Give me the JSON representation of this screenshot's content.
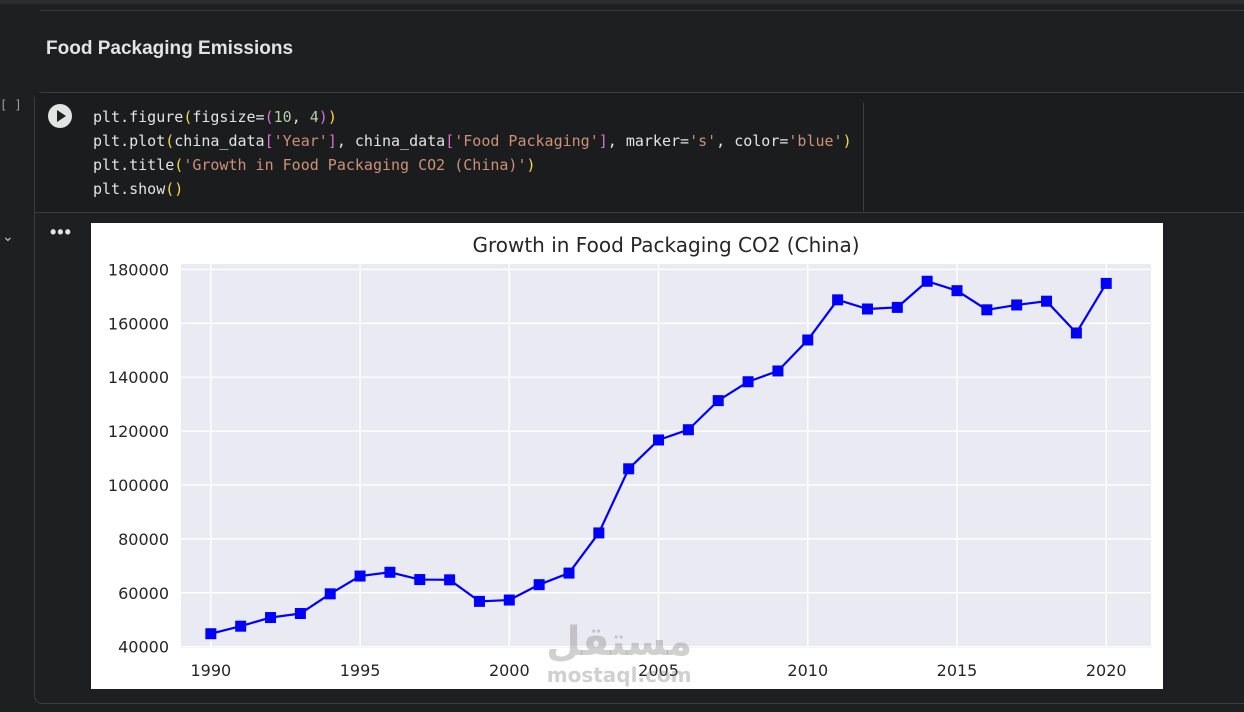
{
  "section": {
    "title": "Food Packaging Emissions"
  },
  "cell": {
    "exec_count": "[ ]",
    "code_lines": [
      [
        {
          "t": "plt.figure",
          "c": "fn"
        },
        {
          "t": "(",
          "c": "p1"
        },
        {
          "t": "figsize=",
          "c": "kw"
        },
        {
          "t": "(",
          "c": "p2"
        },
        {
          "t": "10",
          "c": "num"
        },
        {
          "t": ", ",
          "c": "kw"
        },
        {
          "t": "4",
          "c": "num"
        },
        {
          "t": ")",
          "c": "p2"
        },
        {
          "t": ")",
          "c": "p1"
        }
      ],
      [
        {
          "t": "plt.plot",
          "c": "fn"
        },
        {
          "t": "(",
          "c": "p1"
        },
        {
          "t": "china_data",
          "c": "kw"
        },
        {
          "t": "[",
          "c": "p2"
        },
        {
          "t": "'Year'",
          "c": "str"
        },
        {
          "t": "]",
          "c": "p2"
        },
        {
          "t": ", china_data",
          "c": "kw"
        },
        {
          "t": "[",
          "c": "p2"
        },
        {
          "t": "'Food Packaging'",
          "c": "str"
        },
        {
          "t": "]",
          "c": "p2"
        },
        {
          "t": ", marker=",
          "c": "kw"
        },
        {
          "t": "'s'",
          "c": "str"
        },
        {
          "t": ", color=",
          "c": "kw"
        },
        {
          "t": "'blue'",
          "c": "str"
        },
        {
          "t": ")",
          "c": "p1"
        }
      ],
      [
        {
          "t": "plt.title",
          "c": "fn"
        },
        {
          "t": "(",
          "c": "p1"
        },
        {
          "t": "'Growth in Food Packaging CO2 (China)'",
          "c": "str"
        },
        {
          "t": ")",
          "c": "p1"
        }
      ],
      [
        {
          "t": "plt.show",
          "c": "fn"
        },
        {
          "t": "()",
          "c": "p1"
        }
      ]
    ],
    "more_label": "•••",
    "collapse_label": "⌄"
  },
  "watermark": {
    "line1": "مستقل",
    "line2": "mostaql.com"
  },
  "chart_data": {
    "type": "line",
    "title": "Growth in Food Packaging CO2 (China)",
    "xlabel": "",
    "ylabel": "",
    "x": [
      1990,
      1991,
      1992,
      1993,
      1994,
      1995,
      1996,
      1997,
      1998,
      1999,
      2000,
      2001,
      2002,
      2003,
      2004,
      2005,
      2006,
      2007,
      2008,
      2009,
      2010,
      2011,
      2012,
      2013,
      2014,
      2015,
      2016,
      2017,
      2018,
      2019,
      2020
    ],
    "series": [
      {
        "values": [
          44800,
          47600,
          50800,
          52300,
          59600,
          66200,
          67600,
          64900,
          64800,
          56800,
          57300,
          63000,
          67300,
          82200,
          106000,
          116700,
          120500,
          131300,
          138300,
          142300,
          153800,
          168700,
          165300,
          165900,
          175600,
          172100,
          165000,
          166800,
          168200,
          156400,
          174800
        ],
        "color": "#0000ff",
        "marker": "square"
      }
    ],
    "xticks": [
      1990,
      1995,
      2000,
      2005,
      2010,
      2015,
      2020
    ],
    "yticks": [
      40000,
      60000,
      80000,
      100000,
      120000,
      140000,
      160000,
      180000
    ],
    "xlim": [
      1989,
      2021.5
    ],
    "ylim": [
      39500,
      182000
    ],
    "grid": true,
    "background": "#eaeaf2"
  }
}
